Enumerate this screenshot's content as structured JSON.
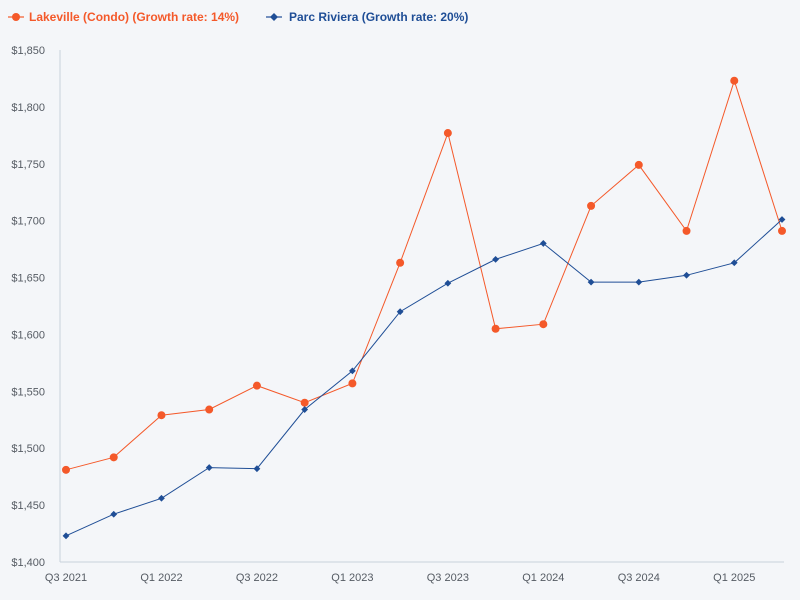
{
  "chart_data": {
    "type": "line",
    "title": "",
    "xlabel": "",
    "ylabel": "",
    "categories": [
      "Q3 2021",
      "Q4 2021",
      "Q1 2022",
      "Q2 2022",
      "Q3 2022",
      "Q4 2022",
      "Q1 2023",
      "Q2 2023",
      "Q3 2023",
      "Q4 2023",
      "Q1 2024",
      "Q2 2024",
      "Q3 2024",
      "Q4 2024",
      "Q1 2025",
      "Q2 2025"
    ],
    "x_tick_labels": [
      "Q3 2021",
      "Q1 2022",
      "Q3 2022",
      "Q1 2023",
      "Q3 2023",
      "Q1 2024",
      "Q3 2024",
      "Q1 2025"
    ],
    "x_tick_indices": [
      0,
      2,
      4,
      6,
      8,
      10,
      12,
      14
    ],
    "ylim": [
      1400,
      1850
    ],
    "y_ticks": [
      1400,
      1450,
      1500,
      1550,
      1600,
      1650,
      1700,
      1750,
      1800,
      1850
    ],
    "y_tick_labels": [
      "$1,400",
      "$1,450",
      "$1,500",
      "$1,550",
      "$1,600",
      "$1,650",
      "$1,700",
      "$1,750",
      "$1,800",
      "$1,850"
    ],
    "grid": false,
    "legend_position": "top-left",
    "series": [
      {
        "name": "Lakeville (Condo) (Growth rate: 14%)",
        "color": "#f4592a",
        "marker": "circle",
        "values": [
          1481,
          1492,
          1529,
          1534,
          1555,
          1540,
          1557,
          1663,
          1777,
          1605,
          1609,
          1713,
          1749,
          1691,
          1823,
          1691
        ]
      },
      {
        "name": "Parc Riviera (Growth rate: 20%)",
        "color": "#1f4e96",
        "marker": "diamond",
        "values": [
          1423,
          1442,
          1456,
          1483,
          1482,
          1534,
          1568,
          1620,
          1645,
          1666,
          1680,
          1646,
          1646,
          1652,
          1663,
          1701
        ]
      }
    ],
    "axis_color": "#c9d1dc"
  }
}
